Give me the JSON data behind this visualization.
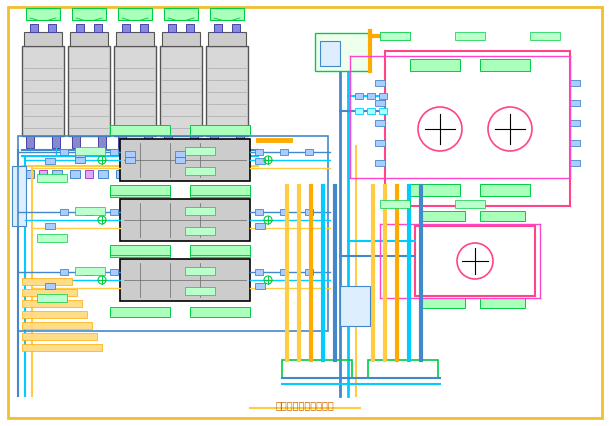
{
  "background": "#ffffff",
  "border_color": "#f0c030",
  "title": "制冷机房水系统原理图",
  "title_color": "#cc6600",
  "blue": "#4488cc",
  "cyan": "#00ccff",
  "green": "#00cc44",
  "yellow": "#ffcc44",
  "magenta": "#ff44cc",
  "pink": "#ff4488",
  "orange": "#ffaa00",
  "purple": "#aa44cc",
  "red": "#ff2200",
  "gray": "#888888",
  "darkgray": "#444444",
  "lw": 1.2,
  "lt": 0.7
}
